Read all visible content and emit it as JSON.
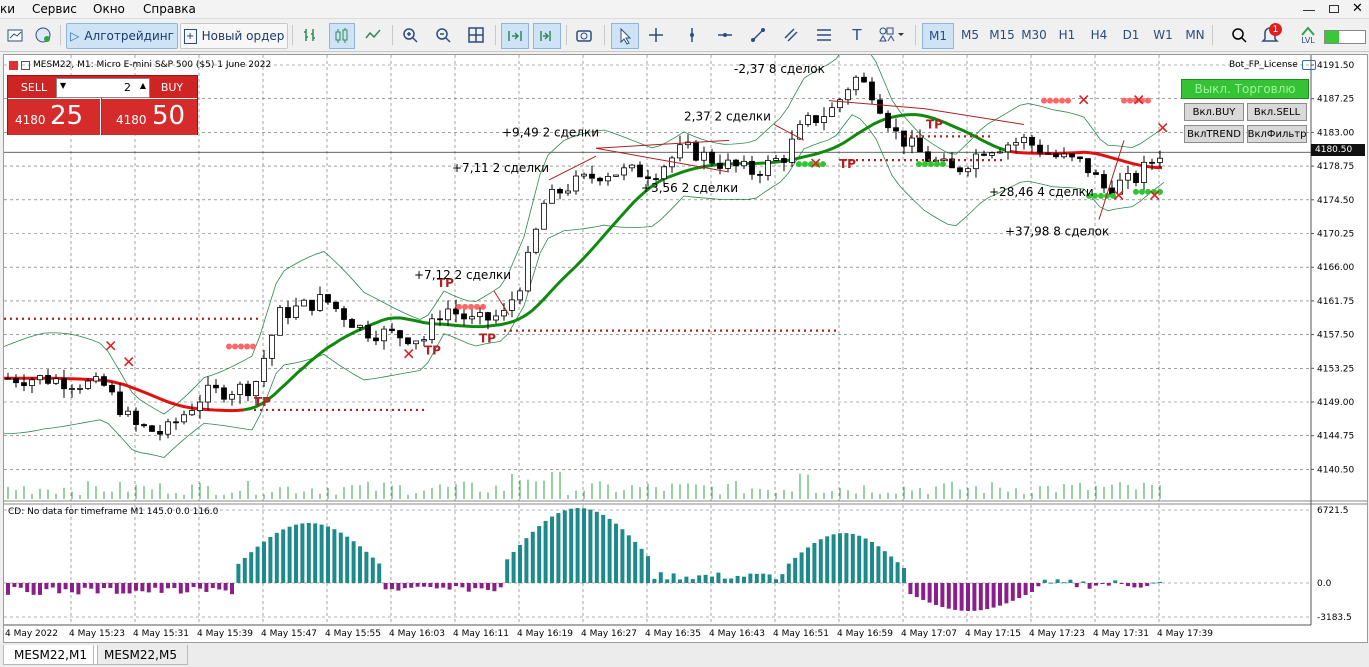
{
  "menu": [
    "ки",
    "Сервис",
    "Окно",
    "Справка"
  ],
  "toolbar": {
    "algo_label": "Алготрейдинг",
    "order_label": "Новый ордер",
    "timeframes": [
      "M1",
      "M5",
      "M15",
      "M30",
      "H1",
      "H4",
      "D1",
      "W1",
      "MN"
    ],
    "selected_timeframe": "M1",
    "notif_count": "1",
    "lvl_label": "LVL"
  },
  "chart": {
    "header": "MESM22, M1:  Micro E-mini S&P 500 ($5) 1 June 2022",
    "license": "Bot_FP_License",
    "current_price": "4180.50",
    "price_ticks": [
      "4191.50",
      "4187.25",
      "4183.00",
      "4178.75",
      "4174.50",
      "4170.25",
      "4166.00",
      "4161.75",
      "4157.50",
      "4153.25",
      "4149.00",
      "4144.75",
      "4140.50"
    ],
    "cd_ticks": [
      "6721.5",
      "0.0",
      "-3183.5"
    ],
    "cd_label": "CD: No data for timeframe M1 145.0 0.0 116.0",
    "time_labels": [
      "4 May 2022",
      "4 May 15:23",
      "4 May 15:31",
      "4 May 15:39",
      "4 May 15:47",
      "4 May 15:55",
      "4 May 16:03",
      "4 May 16:11",
      "4 May 16:19",
      "4 May 16:27",
      "4 May 16:35",
      "4 May 16:43",
      "4 May 16:51",
      "4 May 16:59",
      "4 May 17:07",
      "4 May 17:15",
      "4 May 17:23",
      "4 May 17:31",
      "4 May 17:39"
    ],
    "annotations": [
      "-2,37  8 сделок",
      "+9,49  2 сделки",
      "2,37  2 сделки",
      "+7,11  2 сделки",
      "+3,56  2 сделки",
      "+7,12  2 сделки",
      "+28,46  4 сделки",
      "+37,98  8 сделок"
    ],
    "tp_label": "TP"
  },
  "trade_panel": {
    "sell_label": "SELL",
    "buy_label": "BUY",
    "lot": "2",
    "sell_price_small": "4180",
    "sell_price_big": "25",
    "buy_price_small": "4180",
    "buy_price_big": "50"
  },
  "bot_panel": {
    "toggle_label": "Выкл. Торговлю",
    "buy_label": "Вкл.BUY",
    "sell_label": "Вкл.SELL",
    "trend_label": "ВклTREND",
    "filter_label": "ВклФильтр"
  },
  "tabs": [
    "MESM22,M1",
    "MESM22,M5"
  ],
  "selected_tab": "MESM22,M1",
  "colors": {
    "sell": "#d42020",
    "buy": "#d42020",
    "ma_green": "#0f8a0f",
    "ma_red": "#e01010",
    "hist_teal": "#1f8a8a",
    "hist_purple": "#8a1f8a",
    "bot_green": "#2ec52e"
  }
}
